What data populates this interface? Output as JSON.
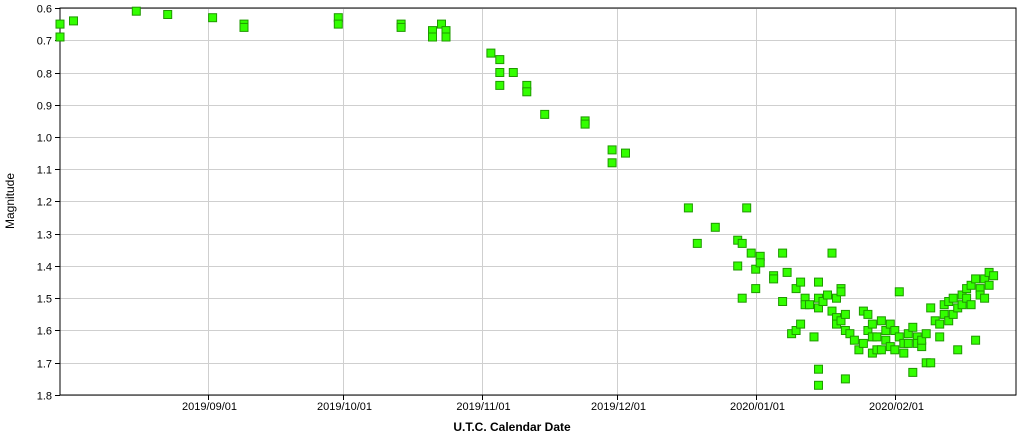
{
  "chart_data": {
    "type": "scatter",
    "title": "",
    "xlabel": "U.T.C. Calendar Date",
    "ylabel": "Magnitude",
    "xlim": [
      "2019-07-30",
      "2020-02-28"
    ],
    "ylim": [
      0.6,
      1.8
    ],
    "y_inverted": true,
    "grid": true,
    "legend": "none",
    "x_ticks": [
      "2019/09/01",
      "2019/10/01",
      "2019/11/01",
      "2019/12/01",
      "2020/01/01",
      "2020/02/01"
    ],
    "y_ticks": [
      "0.6",
      "0.7",
      "0.8",
      "0.9",
      "1.0",
      "1.1",
      "1.2",
      "1.3",
      "1.4",
      "1.5",
      "1.6",
      "1.7",
      "1.8"
    ],
    "marker_color": "#33ff00",
    "marker_edge_color": "#1f9900",
    "points": [
      [
        "2019-07-30",
        0.65
      ],
      [
        "2019-07-30",
        0.69
      ],
      [
        "2019-08-02",
        0.64
      ],
      [
        "2019-08-16",
        0.61
      ],
      [
        "2019-08-23",
        0.62
      ],
      [
        "2019-09-02",
        0.63
      ],
      [
        "2019-09-09",
        0.65
      ],
      [
        "2019-09-09",
        0.66
      ],
      [
        "2019-09-30",
        0.63
      ],
      [
        "2019-09-30",
        0.65
      ],
      [
        "2019-10-14",
        0.65
      ],
      [
        "2019-10-14",
        0.66
      ],
      [
        "2019-10-21",
        0.67
      ],
      [
        "2019-10-21",
        0.69
      ],
      [
        "2019-10-23",
        0.65
      ],
      [
        "2019-10-24",
        0.67
      ],
      [
        "2019-10-24",
        0.69
      ],
      [
        "2019-11-03",
        0.74
      ],
      [
        "2019-11-05",
        0.76
      ],
      [
        "2019-11-05",
        0.8
      ],
      [
        "2019-11-05",
        0.84
      ],
      [
        "2019-11-08",
        0.8
      ],
      [
        "2019-11-11",
        0.84
      ],
      [
        "2019-11-11",
        0.86
      ],
      [
        "2019-11-15",
        0.93
      ],
      [
        "2019-11-24",
        0.95
      ],
      [
        "2019-11-24",
        0.96
      ],
      [
        "2019-11-30",
        1.04
      ],
      [
        "2019-11-30",
        1.08
      ],
      [
        "2019-12-03",
        1.05
      ],
      [
        "2019-12-17",
        1.22
      ],
      [
        "2019-12-19",
        1.33
      ],
      [
        "2019-12-23",
        1.28
      ],
      [
        "2019-12-28",
        1.32
      ],
      [
        "2019-12-28",
        1.4
      ],
      [
        "2019-12-29",
        1.33
      ],
      [
        "2019-12-30",
        1.22
      ],
      [
        "2019-12-31",
        1.36
      ],
      [
        "2019-12-29",
        1.5
      ],
      [
        "2020-01-01",
        1.41
      ],
      [
        "2020-01-01",
        1.47
      ],
      [
        "2020-01-02",
        1.37
      ],
      [
        "2020-01-02",
        1.39
      ],
      [
        "2020-01-05",
        1.43
      ],
      [
        "2020-01-05",
        1.44
      ],
      [
        "2020-01-07",
        1.36
      ],
      [
        "2020-01-07",
        1.51
      ],
      [
        "2020-01-08",
        1.42
      ],
      [
        "2020-01-09",
        1.61
      ],
      [
        "2020-01-10",
        1.6
      ],
      [
        "2020-01-10",
        1.47
      ],
      [
        "2020-01-11",
        1.45
      ],
      [
        "2020-01-11",
        1.58
      ],
      [
        "2020-01-12",
        1.5
      ],
      [
        "2020-01-12",
        1.52
      ],
      [
        "2020-01-13",
        1.52
      ],
      [
        "2020-01-14",
        1.62
      ],
      [
        "2020-01-15",
        1.72
      ],
      [
        "2020-01-15",
        1.77
      ],
      [
        "2020-01-15",
        1.5
      ],
      [
        "2020-01-15",
        1.53
      ],
      [
        "2020-01-15",
        1.45
      ],
      [
        "2020-01-16",
        1.51
      ],
      [
        "2020-01-17",
        1.49
      ],
      [
        "2020-01-18",
        1.36
      ],
      [
        "2020-01-18",
        1.54
      ],
      [
        "2020-01-19",
        1.56
      ],
      [
        "2020-01-19",
        1.58
      ],
      [
        "2020-01-19",
        1.5
      ],
      [
        "2020-01-20",
        1.47
      ],
      [
        "2020-01-20",
        1.48
      ],
      [
        "2020-01-20",
        1.57
      ],
      [
        "2020-01-21",
        1.55
      ],
      [
        "2020-01-21",
        1.6
      ],
      [
        "2020-01-21",
        1.75
      ],
      [
        "2020-01-22",
        1.61
      ],
      [
        "2020-01-23",
        1.63
      ],
      [
        "2020-01-24",
        1.66
      ],
      [
        "2020-01-25",
        1.54
      ],
      [
        "2020-01-25",
        1.64
      ],
      [
        "2020-01-26",
        1.55
      ],
      [
        "2020-01-26",
        1.6
      ],
      [
        "2020-01-27",
        1.58
      ],
      [
        "2020-01-27",
        1.67
      ],
      [
        "2020-01-27",
        1.62
      ],
      [
        "2020-01-28",
        1.62
      ],
      [
        "2020-01-28",
        1.66
      ],
      [
        "2020-01-29",
        1.57
      ],
      [
        "2020-01-29",
        1.66
      ],
      [
        "2020-01-30",
        1.6
      ],
      [
        "2020-01-30",
        1.63
      ],
      [
        "2020-01-31",
        1.65
      ],
      [
        "2020-01-31",
        1.58
      ],
      [
        "2020-02-01",
        1.6
      ],
      [
        "2020-02-01",
        1.66
      ],
      [
        "2020-02-02",
        1.62
      ],
      [
        "2020-02-02",
        1.48
      ],
      [
        "2020-02-03",
        1.64
      ],
      [
        "2020-02-03",
        1.67
      ],
      [
        "2020-02-04",
        1.61
      ],
      [
        "2020-02-04",
        1.64
      ],
      [
        "2020-02-05",
        1.59
      ],
      [
        "2020-02-05",
        1.73
      ],
      [
        "2020-02-06",
        1.62
      ],
      [
        "2020-02-06",
        1.64
      ],
      [
        "2020-02-07",
        1.65
      ],
      [
        "2020-02-07",
        1.63
      ],
      [
        "2020-02-08",
        1.7
      ],
      [
        "2020-02-08",
        1.61
      ],
      [
        "2020-02-09",
        1.53
      ],
      [
        "2020-02-09",
        1.7
      ],
      [
        "2020-02-10",
        1.57
      ],
      [
        "2020-02-11",
        1.62
      ],
      [
        "2020-02-11",
        1.58
      ],
      [
        "2020-02-12",
        1.52
      ],
      [
        "2020-02-12",
        1.55
      ],
      [
        "2020-02-13",
        1.57
      ],
      [
        "2020-02-13",
        1.51
      ],
      [
        "2020-02-14",
        1.55
      ],
      [
        "2020-02-14",
        1.5
      ],
      [
        "2020-02-15",
        1.53
      ],
      [
        "2020-02-15",
        1.66
      ],
      [
        "2020-02-16",
        1.49
      ],
      [
        "2020-02-16",
        1.52
      ],
      [
        "2020-02-17",
        1.5
      ],
      [
        "2020-02-17",
        1.47
      ],
      [
        "2020-02-18",
        1.52
      ],
      [
        "2020-02-18",
        1.46
      ],
      [
        "2020-02-19",
        1.63
      ],
      [
        "2020-02-19",
        1.44
      ],
      [
        "2020-02-20",
        1.47
      ],
      [
        "2020-02-20",
        1.49
      ],
      [
        "2020-02-21",
        1.44
      ],
      [
        "2020-02-21",
        1.5
      ],
      [
        "2020-02-22",
        1.46
      ],
      [
        "2020-02-22",
        1.42
      ],
      [
        "2020-02-23",
        1.43
      ]
    ]
  }
}
